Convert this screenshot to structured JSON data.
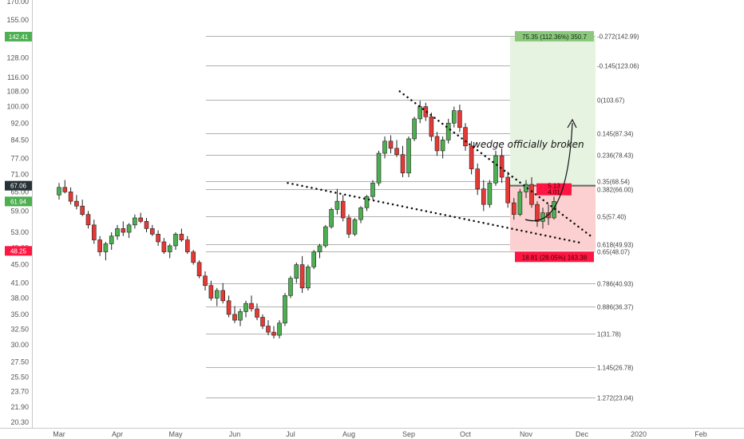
{
  "chart_data": {
    "type": "candlestick",
    "y_ticks": [
      "170.00",
      "155.00",
      "142.00",
      "128.00",
      "116.00",
      "108.00",
      "100.00",
      "92.00",
      "84.50",
      "77.00",
      "71.00",
      "65.00",
      "59.00",
      "53.00",
      "49.00",
      "45.00",
      "41.00",
      "38.00",
      "35.00",
      "32.50",
      "30.00",
      "27.50",
      "25.50",
      "23.70",
      "21.90",
      "20.30"
    ],
    "y_tick_values": [
      170,
      155,
      142,
      128,
      116,
      108,
      100,
      92,
      84.5,
      77,
      71,
      65,
      59,
      53,
      49,
      45,
      41,
      38,
      35,
      32.5,
      30,
      27.5,
      25.5,
      23.7,
      21.9,
      20.3
    ],
    "x_ticks": [
      "Mar",
      "Apr",
      "May",
      "Jun",
      "Jul",
      "Aug",
      "Sep",
      "Oct",
      "Nov",
      "Dec",
      "2020",
      "Feb"
    ],
    "scale": "log",
    "price_tags": [
      {
        "label": "142.41",
        "value": 142.41,
        "color": "#4caf50"
      },
      {
        "label": "67.06",
        "value": 67.06,
        "color": "#263238"
      },
      {
        "label": "61.94",
        "value": 61.94,
        "color": "#4caf50"
      },
      {
        "label": "48.25",
        "value": 48.25,
        "color": "#ff1744"
      }
    ],
    "fib_levels": [
      {
        "label": "-0.272(142.99)",
        "value": 142.99
      },
      {
        "label": "-0.145(123.06)",
        "value": 123.06
      },
      {
        "label": "0(103.67)",
        "value": 103.67
      },
      {
        "label": "0.145(87.34)",
        "value": 87.34
      },
      {
        "label": "0.236(78.43)",
        "value": 78.43
      },
      {
        "label": "0.35(68.54)",
        "value": 68.54
      },
      {
        "label": "0.382(66.00)",
        "value": 66.0
      },
      {
        "label": "0.5(57.40)",
        "value": 57.4
      },
      {
        "label": "0.618(49.93)",
        "value": 49.93
      },
      {
        "label": "0.65(48.07)",
        "value": 48.07
      },
      {
        "label": "0.786(40.93)",
        "value": 40.93
      },
      {
        "label": "0.886(36.37)",
        "value": 36.37
      },
      {
        "label": "1(31.78)",
        "value": 31.78
      },
      {
        "label": "1.145(26.78)",
        "value": 26.78
      },
      {
        "label": "1.272(23.04)",
        "value": 23.04
      }
    ],
    "position": {
      "entry": 67.06,
      "target": 142.41,
      "stop": 48.25,
      "target_label": "75.35 (112.36%) 350.7",
      "stop_label": "18.81 (28.05%) 163.38",
      "ratio_label_1": "5.13",
      "ratio_label_2": "4.01"
    },
    "annotation": "wedge officially broken",
    "colors": {
      "up": "#4caf50",
      "down": "#e53935",
      "profit_zone": "#e6f3e1",
      "loss_zone": "#fcd0d0",
      "trendline": "#111111"
    },
    "candles": [
      {
        "m": 0.0,
        "o": 64.0,
        "h": 68.0,
        "l": 62.5,
        "c": 66.5
      },
      {
        "m": 0.1,
        "o": 66.5,
        "h": 69.0,
        "l": 64.5,
        "c": 65.0
      },
      {
        "m": 0.2,
        "o": 65.0,
        "h": 66.5,
        "l": 61.0,
        "c": 62.0
      },
      {
        "m": 0.3,
        "o": 62.0,
        "h": 64.0,
        "l": 59.5,
        "c": 60.5
      },
      {
        "m": 0.4,
        "o": 60.5,
        "h": 62.5,
        "l": 57.5,
        "c": 58.0
      },
      {
        "m": 0.5,
        "o": 58.0,
        "h": 59.0,
        "l": 54.0,
        "c": 55.0
      },
      {
        "m": 0.6,
        "o": 55.0,
        "h": 56.5,
        "l": 50.0,
        "c": 51.0
      },
      {
        "m": 0.7,
        "o": 51.0,
        "h": 52.0,
        "l": 47.0,
        "c": 48.0
      },
      {
        "m": 0.8,
        "o": 48.0,
        "h": 50.5,
        "l": 46.0,
        "c": 50.0
      },
      {
        "m": 0.9,
        "o": 50.0,
        "h": 53.0,
        "l": 48.5,
        "c": 52.0
      },
      {
        "m": 1.0,
        "o": 52.0,
        "h": 55.0,
        "l": 51.0,
        "c": 54.0
      },
      {
        "m": 1.1,
        "o": 54.0,
        "h": 56.0,
        "l": 52.0,
        "c": 53.0
      },
      {
        "m": 1.2,
        "o": 53.0,
        "h": 55.5,
        "l": 51.5,
        "c": 55.0
      },
      {
        "m": 1.3,
        "o": 55.0,
        "h": 58.0,
        "l": 54.0,
        "c": 57.0
      },
      {
        "m": 1.4,
        "o": 57.0,
        "h": 58.5,
        "l": 55.5,
        "c": 56.0
      },
      {
        "m": 1.5,
        "o": 56.0,
        "h": 57.0,
        "l": 53.0,
        "c": 54.0
      },
      {
        "m": 1.6,
        "o": 54.0,
        "h": 55.0,
        "l": 52.0,
        "c": 52.5
      },
      {
        "m": 1.7,
        "o": 52.5,
        "h": 53.5,
        "l": 49.5,
        "c": 50.5
      },
      {
        "m": 1.8,
        "o": 50.5,
        "h": 51.5,
        "l": 47.5,
        "c": 48.0
      },
      {
        "m": 1.9,
        "o": 48.0,
        "h": 50.0,
        "l": 46.5,
        "c": 49.5
      },
      {
        "m": 2.0,
        "o": 49.5,
        "h": 53.0,
        "l": 48.5,
        "c": 52.5
      },
      {
        "m": 2.1,
        "o": 52.5,
        "h": 54.0,
        "l": 50.5,
        "c": 51.0
      },
      {
        "m": 2.2,
        "o": 51.0,
        "h": 52.0,
        "l": 47.5,
        "c": 48.0
      },
      {
        "m": 2.3,
        "o": 48.0,
        "h": 48.5,
        "l": 45.0,
        "c": 45.5
      },
      {
        "m": 2.4,
        "o": 45.5,
        "h": 46.0,
        "l": 42.0,
        "c": 42.5
      },
      {
        "m": 2.5,
        "o": 42.5,
        "h": 43.5,
        "l": 39.5,
        "c": 40.5
      },
      {
        "m": 2.6,
        "o": 40.5,
        "h": 41.5,
        "l": 37.5,
        "c": 38.0
      },
      {
        "m": 2.7,
        "o": 38.0,
        "h": 40.0,
        "l": 36.5,
        "c": 39.5
      },
      {
        "m": 2.8,
        "o": 39.5,
        "h": 41.0,
        "l": 37.0,
        "c": 37.5
      },
      {
        "m": 2.9,
        "o": 37.5,
        "h": 38.5,
        "l": 34.5,
        "c": 35.0
      },
      {
        "m": 3.0,
        "o": 35.0,
        "h": 36.5,
        "l": 33.5,
        "c": 34.0
      },
      {
        "m": 3.1,
        "o": 34.0,
        "h": 36.0,
        "l": 33.0,
        "c": 35.5
      },
      {
        "m": 3.2,
        "o": 35.5,
        "h": 37.5,
        "l": 34.5,
        "c": 37.0
      },
      {
        "m": 3.3,
        "o": 37.0,
        "h": 38.5,
        "l": 35.5,
        "c": 36.0
      },
      {
        "m": 3.4,
        "o": 36.0,
        "h": 37.0,
        "l": 34.0,
        "c": 34.5
      },
      {
        "m": 3.5,
        "o": 34.5,
        "h": 35.0,
        "l": 32.5,
        "c": 33.0
      },
      {
        "m": 3.6,
        "o": 33.0,
        "h": 34.0,
        "l": 31.5,
        "c": 32.0
      },
      {
        "m": 3.7,
        "o": 32.0,
        "h": 33.0,
        "l": 31.0,
        "c": 31.5
      },
      {
        "m": 3.8,
        "o": 31.5,
        "h": 34.0,
        "l": 31.0,
        "c": 33.5
      },
      {
        "m": 3.9,
        "o": 33.5,
        "h": 39.0,
        "l": 33.0,
        "c": 38.5
      },
      {
        "m": 4.0,
        "o": 38.5,
        "h": 42.5,
        "l": 38.0,
        "c": 42.0
      },
      {
        "m": 4.1,
        "o": 42.0,
        "h": 45.5,
        "l": 41.0,
        "c": 45.0
      },
      {
        "m": 4.2,
        "o": 45.0,
        "h": 47.0,
        "l": 39.0,
        "c": 40.0
      },
      {
        "m": 4.3,
        "o": 40.0,
        "h": 45.0,
        "l": 39.5,
        "c": 44.5
      },
      {
        "m": 4.4,
        "o": 44.5,
        "h": 48.5,
        "l": 44.0,
        "c": 48.0
      },
      {
        "m": 4.5,
        "o": 48.0,
        "h": 50.0,
        "l": 46.5,
        "c": 49.5
      },
      {
        "m": 4.6,
        "o": 49.5,
        "h": 55.0,
        "l": 49.0,
        "c": 54.5
      },
      {
        "m": 4.7,
        "o": 54.5,
        "h": 60.0,
        "l": 54.0,
        "c": 59.5
      },
      {
        "m": 4.8,
        "o": 59.5,
        "h": 66.0,
        "l": 58.0,
        "c": 62.0
      },
      {
        "m": 4.9,
        "o": 62.0,
        "h": 64.0,
        "l": 56.0,
        "c": 57.0
      },
      {
        "m": 5.0,
        "o": 57.0,
        "h": 58.0,
        "l": 51.5,
        "c": 52.5
      },
      {
        "m": 5.1,
        "o": 52.5,
        "h": 57.0,
        "l": 52.0,
        "c": 56.5
      },
      {
        "m": 5.2,
        "o": 56.5,
        "h": 60.5,
        "l": 55.5,
        "c": 60.0
      },
      {
        "m": 5.3,
        "o": 60.0,
        "h": 64.0,
        "l": 59.0,
        "c": 63.5
      },
      {
        "m": 5.4,
        "o": 63.5,
        "h": 69.0,
        "l": 62.5,
        "c": 68.0
      },
      {
        "m": 5.5,
        "o": 68.0,
        "h": 80.0,
        "l": 67.0,
        "c": 79.0
      },
      {
        "m": 5.6,
        "o": 79.0,
        "h": 86.0,
        "l": 77.0,
        "c": 84.0
      },
      {
        "m": 5.7,
        "o": 84.0,
        "h": 86.5,
        "l": 79.0,
        "c": 81.0
      },
      {
        "m": 5.8,
        "o": 81.0,
        "h": 84.5,
        "l": 77.5,
        "c": 78.5
      },
      {
        "m": 5.9,
        "o": 78.5,
        "h": 82.0,
        "l": 70.0,
        "c": 71.5
      },
      {
        "m": 6.0,
        "o": 71.5,
        "h": 86.0,
        "l": 70.0,
        "c": 85.0
      },
      {
        "m": 6.1,
        "o": 85.0,
        "h": 95.0,
        "l": 84.0,
        "c": 94.0
      },
      {
        "m": 6.2,
        "o": 94.0,
        "h": 103.0,
        "l": 92.0,
        "c": 100.0
      },
      {
        "m": 6.3,
        "o": 100.0,
        "h": 102.0,
        "l": 93.0,
        "c": 95.0
      },
      {
        "m": 6.4,
        "o": 95.0,
        "h": 97.0,
        "l": 84.0,
        "c": 86.0
      },
      {
        "m": 6.5,
        "o": 86.0,
        "h": 88.0,
        "l": 78.0,
        "c": 80.0
      },
      {
        "m": 6.6,
        "o": 80.0,
        "h": 86.0,
        "l": 77.0,
        "c": 84.5
      },
      {
        "m": 6.7,
        "o": 84.5,
        "h": 94.0,
        "l": 83.0,
        "c": 92.0
      },
      {
        "m": 6.8,
        "o": 92.0,
        "h": 100.0,
        "l": 90.0,
        "c": 98.0
      },
      {
        "m": 6.9,
        "o": 98.0,
        "h": 101.0,
        "l": 88.0,
        "c": 90.0
      },
      {
        "m": 7.0,
        "o": 90.0,
        "h": 92.0,
        "l": 80.0,
        "c": 82.0
      },
      {
        "m": 7.1,
        "o": 82.0,
        "h": 84.0,
        "l": 71.0,
        "c": 73.0
      },
      {
        "m": 7.2,
        "o": 73.0,
        "h": 75.0,
        "l": 64.0,
        "c": 66.0
      },
      {
        "m": 7.3,
        "o": 66.0,
        "h": 69.0,
        "l": 59.0,
        "c": 61.0
      },
      {
        "m": 7.4,
        "o": 61.0,
        "h": 69.0,
        "l": 60.0,
        "c": 68.0
      },
      {
        "m": 7.5,
        "o": 68.0,
        "h": 80.0,
        "l": 67.0,
        "c": 78.0
      },
      {
        "m": 7.6,
        "o": 78.0,
        "h": 81.0,
        "l": 68.0,
        "c": 70.0
      },
      {
        "m": 7.7,
        "o": 70.0,
        "h": 72.0,
        "l": 60.0,
        "c": 61.5
      },
      {
        "m": 7.8,
        "o": 61.5,
        "h": 63.0,
        "l": 56.5,
        "c": 58.0
      },
      {
        "m": 7.9,
        "o": 58.0,
        "h": 66.0,
        "l": 57.5,
        "c": 65.0
      },
      {
        "m": 8.0,
        "o": 65.0,
        "h": 69.0,
        "l": 63.0,
        "c": 67.5
      },
      {
        "m": 8.1,
        "o": 67.5,
        "h": 70.0,
        "l": 60.0,
        "c": 61.0
      },
      {
        "m": 8.2,
        "o": 61.0,
        "h": 62.0,
        "l": 54.5,
        "c": 56.0
      },
      {
        "m": 8.3,
        "o": 56.0,
        "h": 60.0,
        "l": 54.0,
        "c": 58.5
      },
      {
        "m": 8.4,
        "o": 58.5,
        "h": 61.0,
        "l": 55.0,
        "c": 57.0
      },
      {
        "m": 8.5,
        "o": 57.0,
        "h": 63.5,
        "l": 56.5,
        "c": 61.94
      }
    ]
  }
}
